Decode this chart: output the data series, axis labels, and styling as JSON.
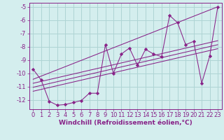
{
  "background_color": "#d4eeee",
  "grid_color": "#aed4d4",
  "line_color": "#882288",
  "marker_color": "#882288",
  "xlim": [
    -0.5,
    23.5
  ],
  "ylim": [
    -12.7,
    -4.7
  ],
  "xticks": [
    0,
    1,
    2,
    3,
    4,
    5,
    6,
    7,
    8,
    9,
    10,
    11,
    12,
    13,
    14,
    15,
    16,
    17,
    18,
    19,
    20,
    21,
    22,
    23
  ],
  "yticks": [
    -12,
    -11,
    -10,
    -9,
    -8,
    -7,
    -6,
    -5
  ],
  "xlabel": "Windchill (Refroidissement éolien,°C)",
  "xlabel_fontsize": 6.5,
  "tick_fontsize": 6.0,
  "series": [
    [
      0,
      -9.7
    ],
    [
      1,
      -10.5
    ],
    [
      2,
      -12.1
    ],
    [
      3,
      -12.4
    ],
    [
      4,
      -12.35
    ],
    [
      5,
      -12.2
    ],
    [
      6,
      -12.05
    ],
    [
      7,
      -11.5
    ],
    [
      8,
      -11.5
    ],
    [
      9,
      -7.85
    ],
    [
      10,
      -10.0
    ],
    [
      11,
      -8.55
    ],
    [
      12,
      -8.1
    ],
    [
      13,
      -9.4
    ],
    [
      14,
      -8.2
    ],
    [
      15,
      -8.55
    ],
    [
      16,
      -8.75
    ],
    [
      17,
      -5.65
    ],
    [
      18,
      -6.2
    ],
    [
      19,
      -7.85
    ],
    [
      20,
      -7.6
    ],
    [
      21,
      -10.75
    ],
    [
      22,
      -8.7
    ],
    [
      23,
      -5.0
    ]
  ],
  "regression_lines": [
    {
      "x": [
        0,
        23
      ],
      "y": [
        -10.45,
        -5.0
      ]
    },
    {
      "x": [
        0,
        23
      ],
      "y": [
        -10.75,
        -7.55
      ]
    },
    {
      "x": [
        0,
        23
      ],
      "y": [
        -11.05,
        -7.85
      ]
    },
    {
      "x": [
        0,
        23
      ],
      "y": [
        -11.35,
        -8.15
      ]
    }
  ]
}
